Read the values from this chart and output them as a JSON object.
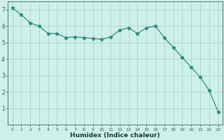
{
  "x": [
    0,
    1,
    2,
    3,
    4,
    5,
    6,
    7,
    8,
    9,
    10,
    11,
    12,
    13,
    14,
    15,
    16,
    17,
    18,
    19,
    20,
    21,
    22,
    23
  ],
  "y": [
    7.1,
    6.7,
    6.2,
    6.0,
    5.55,
    5.55,
    5.3,
    5.35,
    5.3,
    5.25,
    5.2,
    5.35,
    5.75,
    5.9,
    5.55,
    5.9,
    6.0,
    5.3,
    4.7,
    4.1,
    3.5,
    2.9,
    2.1,
    0.8
  ],
  "xlabel": "Humidex (Indice chaleur)",
  "xlim": [
    -0.5,
    23.5
  ],
  "ylim": [
    0,
    7.5
  ],
  "yticks": [
    1,
    2,
    3,
    4,
    5,
    6,
    7
  ],
  "xticks": [
    0,
    1,
    2,
    3,
    4,
    5,
    6,
    7,
    8,
    9,
    10,
    11,
    12,
    13,
    14,
    15,
    16,
    17,
    18,
    19,
    20,
    21,
    22,
    23
  ],
  "line_color": "#2e8b7a",
  "marker": "*",
  "bg_color": "#cef0ea",
  "grid_color": "#aad4cc",
  "axis_color": "#4a7a72",
  "tick_color": "#2e5a54",
  "font_color": "#1a3a36",
  "tick_fontsize_x": 4.5,
  "tick_fontsize_y": 5.5,
  "xlabel_fontsize": 6.5,
  "linewidth": 0.9,
  "markersize": 3.5
}
